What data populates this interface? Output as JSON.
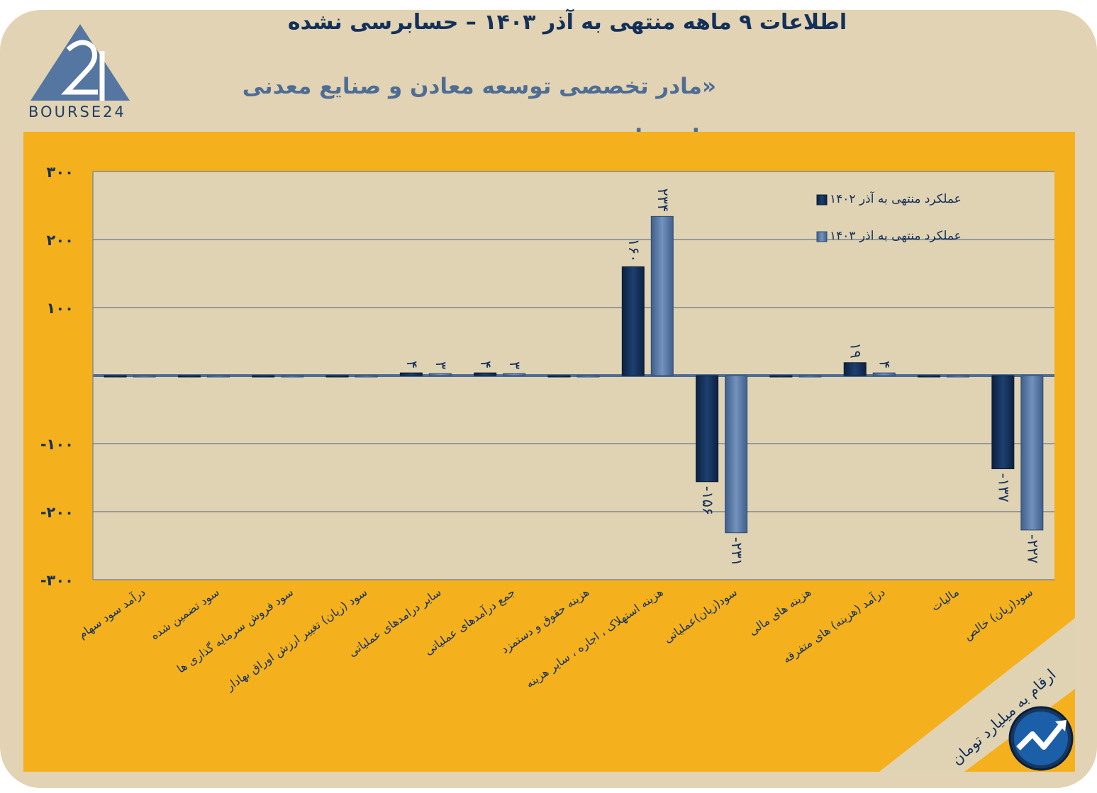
{
  "header": {
    "title": "اطلاعات ۹ ماهه منتهی به آذر ۱۴۰۳ – حسابرسی نشده",
    "subtitle": "«مادر تخصصی توسعه معادن و صنایع معدنی خاورمیانه »",
    "logo_text": "BOURSE24"
  },
  "footer": {
    "units_note": "ارقام به میلیارد تومان",
    "icon": "trend-up-icon"
  },
  "colors": {
    "frame": "#e1d3b3",
    "plot_background": "#f4b11d",
    "plot_area": "#e0d3b4",
    "series_1402": "#14335c",
    "series_1403": "#5877a4",
    "axis_text": "#13305a"
  },
  "chart_data": {
    "type": "bar",
    "categories": [
      "درآمد سود سهام",
      "سود تضمین شده",
      "سود فروش سرمایه گذاری ها",
      "سود (زیان) تغییر ارزش اوراق بهادار",
      "سایر درامدهای عملیاتی",
      "جمع درآمدهای عملیاتی",
      "هزینه حقوق و دستمزد",
      "هزینه استهلاک ، اجاره ، سایر هزینه",
      "سود(زیان)عملیاتی",
      "هزینه های مالی",
      "درآمد (هزینه) های متفرقه",
      "مالیات",
      "سود(زیان) خالص"
    ],
    "series": [
      {
        "name": "عملکرد منتهی به آذر ۱۴۰۲",
        "values": [
          0,
          0,
          0,
          0,
          4,
          4,
          0,
          160,
          -156,
          0,
          19,
          0,
          -137
        ],
        "labels": [
          "",
          "",
          "",
          "",
          "۴",
          "۴",
          "",
          "۱۶۰",
          "-۱۵۶",
          "",
          "۱۹",
          "",
          "-۱۳۷"
        ]
      },
      {
        "name": "عملکرد منتهی به اذر ۱۴۰۳",
        "values": [
          0,
          0,
          0,
          0,
          3,
          3,
          0,
          234,
          -231,
          0,
          4,
          0,
          -227
        ],
        "labels": [
          "",
          "",
          "",
          "",
          "۳",
          "۳",
          "",
          "۲۳۴",
          "-۲۳۱",
          "",
          "۴",
          "",
          "-۲۲۷"
        ]
      }
    ],
    "y_ticks": [
      300,
      200,
      100,
      0,
      -100,
      -200,
      -300
    ],
    "y_tick_labels": [
      "۳۰۰",
      "۲۰۰",
      "۱۰۰",
      "",
      "-۱۰۰",
      "-۲۰۰",
      "-۳۰۰"
    ],
    "ylim": [
      -300,
      300
    ],
    "grid": true,
    "legend_position": "top-right",
    "xlabel": "",
    "ylabel": ""
  }
}
